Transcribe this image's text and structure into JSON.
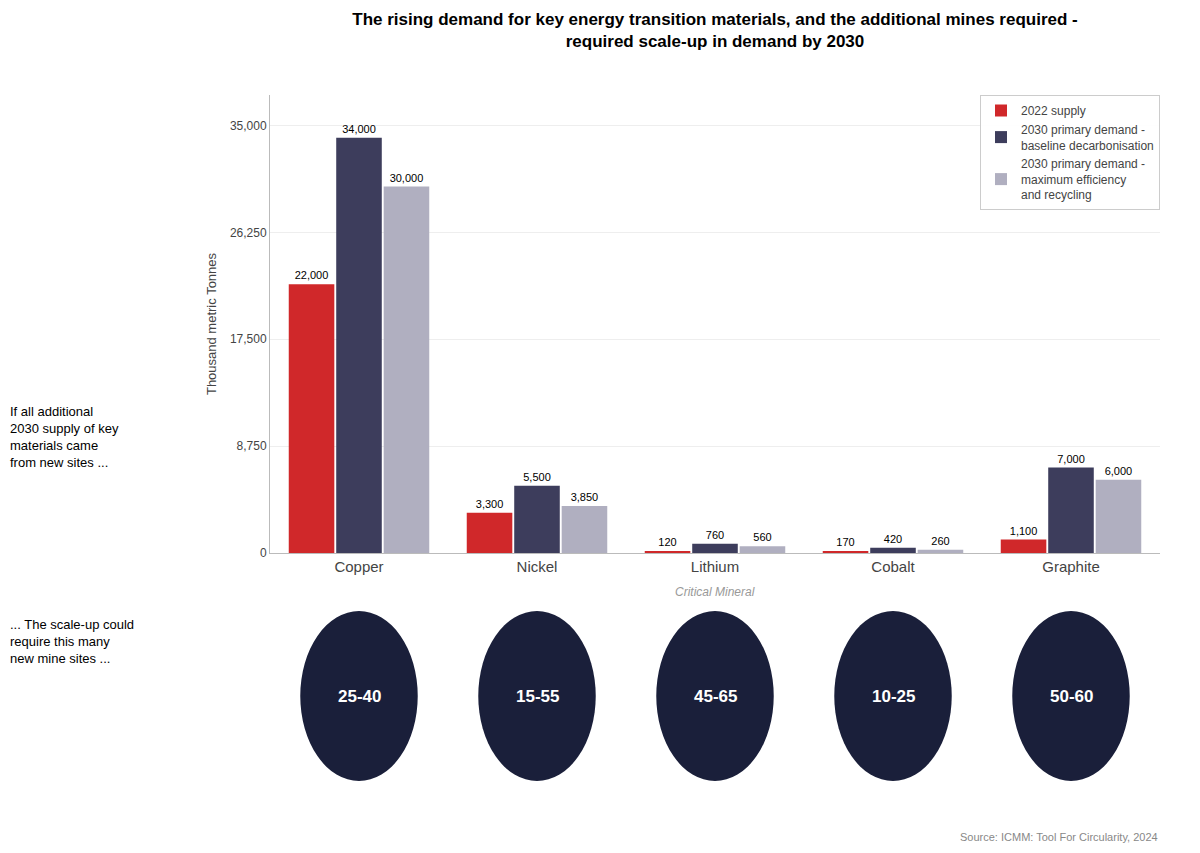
{
  "chart_data": {
    "type": "bar",
    "title": "The rising demand for key energy transition materials, and the additional mines required -\nrequired scale-up in demand by 2030",
    "categories": [
      "Copper",
      "Nickel",
      "Lithium",
      "Cobalt",
      "Graphite"
    ],
    "series": [
      {
        "name": "2022 supply",
        "color": "#d0282a",
        "values": [
          22000,
          3300,
          120,
          170,
          1100
        ],
        "value_labels": [
          "22,000",
          "3,300",
          "120",
          "170",
          "1,100"
        ]
      },
      {
        "name": "2030 primary demand -\nbaseline decarbonisation",
        "color": "#3d3d5c",
        "values": [
          34000,
          5500,
          760,
          420,
          7000
        ],
        "value_labels": [
          "34,000",
          "5,500",
          "760",
          "420",
          "7,000"
        ]
      },
      {
        "name": "2030 primary demand -\nmaximum efficiency\nand recycling",
        "color": "#b0afc0",
        "values": [
          30000,
          3850,
          560,
          260,
          6000
        ],
        "value_labels": [
          "30,000",
          "3,850",
          "560",
          "260",
          "6,000"
        ]
      }
    ],
    "ylabel": "Thousand metric Tonnes",
    "ylim": [
      0,
      37500
    ],
    "yticks": [
      0,
      {
        "value": 8750,
        "label": "8,750"
      },
      {
        "value": 17500,
        "label": "17,500"
      },
      {
        "value": 26250,
        "label": "26,250"
      },
      {
        "value": 35000,
        "label": "35,000"
      }
    ],
    "grid": true,
    "legend": "upper right",
    "data_labels": true,
    "annotations": [
      {
        "text": "Critical Mineral",
        "category": "Lithium"
      },
      {
        "text": "If all additional\n2030 supply of key\nmaterials came\nfrom new sites ..."
      },
      {
        "text": "... The scale-up could\nrequire this many\nnew mine sites ..."
      },
      {
        "text": "Source: ICMM: Tool For Circularity, 2024"
      },
      {
        "text": "25-40",
        "category": "Copper",
        "marker": "ellipse",
        "color": "#1a1f3a"
      },
      {
        "text": "15-55",
        "category": "Nickel",
        "marker": "ellipse",
        "color": "#1a1f3a"
      },
      {
        "text": "45-65",
        "category": "Lithium",
        "marker": "ellipse",
        "color": "#1a1f3a"
      },
      {
        "text": "10-25",
        "category": "Cobalt",
        "marker": "ellipse",
        "color": "#1a1f3a"
      },
      {
        "text": "50-60",
        "category": "Graphite",
        "marker": "ellipse",
        "color": "#1a1f3a"
      }
    ]
  }
}
